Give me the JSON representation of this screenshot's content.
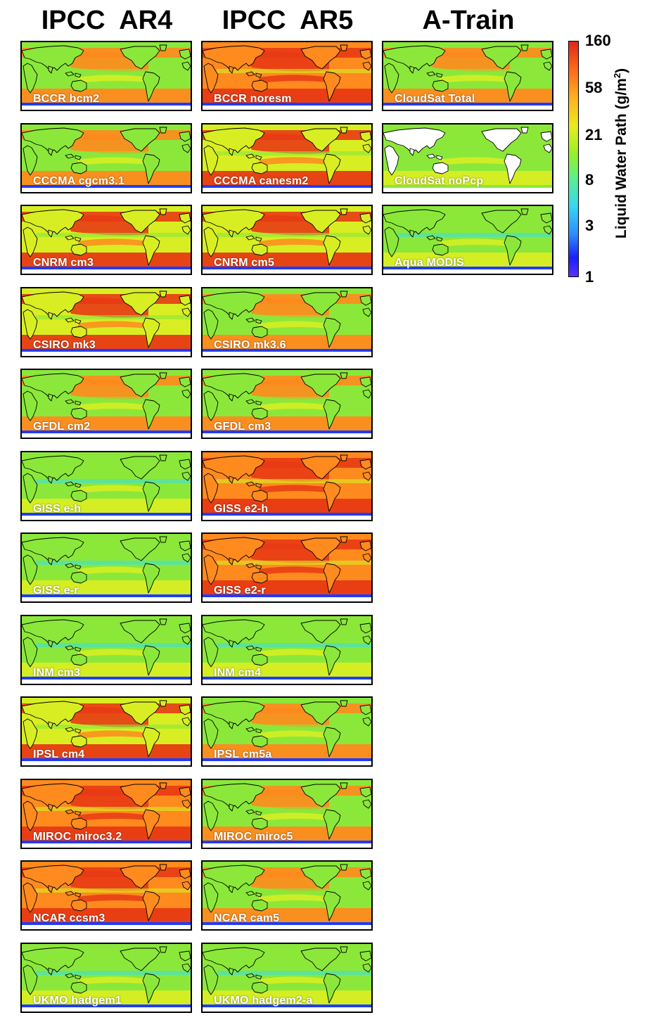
{
  "columns": [
    {
      "id": "ar4",
      "title": "IPCC  AR4",
      "panels": [
        {
          "label": "BCCR bcm2",
          "regime": 1
        },
        {
          "label": "CCCMA cgcm3.1",
          "regime": 1
        },
        {
          "label": "CNRM cm3",
          "regime": 2
        },
        {
          "label": "CSIRO mk3",
          "regime": 2
        },
        {
          "label": "GFDL cm2",
          "regime": 1
        },
        {
          "label": "GISS e-h",
          "regime": 0
        },
        {
          "label": "GISS e-r",
          "regime": 0
        },
        {
          "label": "INM cm3",
          "regime": 0
        },
        {
          "label": "IPSL cm4",
          "regime": 2
        },
        {
          "label": "MIROC miroc3.2",
          "regime": 3
        },
        {
          "label": "NCAR ccsm3",
          "regime": 3
        },
        {
          "label": "UKMO hadgem1",
          "regime": 0
        }
      ]
    },
    {
      "id": "ar5",
      "title": "IPCC  AR5",
      "panels": [
        {
          "label": "BCCR noresm",
          "regime": 3
        },
        {
          "label": "CCCMA canesm2",
          "regime": 2
        },
        {
          "label": "CNRM cm5",
          "regime": 2
        },
        {
          "label": "CSIRO mk3.6",
          "regime": 1
        },
        {
          "label": "GFDL cm3",
          "regime": 1
        },
        {
          "label": "GISS e2-h",
          "regime": 3
        },
        {
          "label": "GISS e2-r",
          "regime": 3
        },
        {
          "label": "INM cm4",
          "regime": 0
        },
        {
          "label": "IPSL cm5a",
          "regime": 1
        },
        {
          "label": "MIROC miroc5",
          "regime": 1
        },
        {
          "label": "NCAR cam5",
          "regime": 1
        },
        {
          "label": "UKMO hadgem2-a",
          "regime": 0
        }
      ]
    },
    {
      "id": "atrain",
      "title": "A-Train",
      "panels": [
        {
          "label": "CloudSat Total",
          "regime": 1
        },
        {
          "label": "CloudSat noPcp",
          "regime": 4
        },
        {
          "label": "Aqua MODIS",
          "regime": 0
        }
      ]
    }
  ],
  "colorbar": {
    "title": "Liquid Water Path (g/m",
    "title_sup": "2",
    "title_end": ")",
    "ticks": [
      "160",
      "58",
      "21",
      "8",
      "3",
      "1"
    ],
    "tick_values": [
      160,
      58,
      21,
      8,
      3,
      1
    ],
    "scale": "log",
    "colors": [
      "#5a30ff",
      "#1a20ff",
      "#2d8cff",
      "#36d8f0",
      "#5cf08c",
      "#97ef28",
      "#e8ec20",
      "#ffb020",
      "#ff6a1a",
      "#e02818"
    ]
  },
  "map_colors": {
    "ocean_low": "#8be83a",
    "ocean_mid": "#d8ee22",
    "ocean_high": "#ff8a1e",
    "ocean_max": "#e83a14",
    "cyan": "#3fe0d8",
    "blue": "#1e3cff",
    "land_bg": "#ffffff",
    "coast": "#000000"
  }
}
